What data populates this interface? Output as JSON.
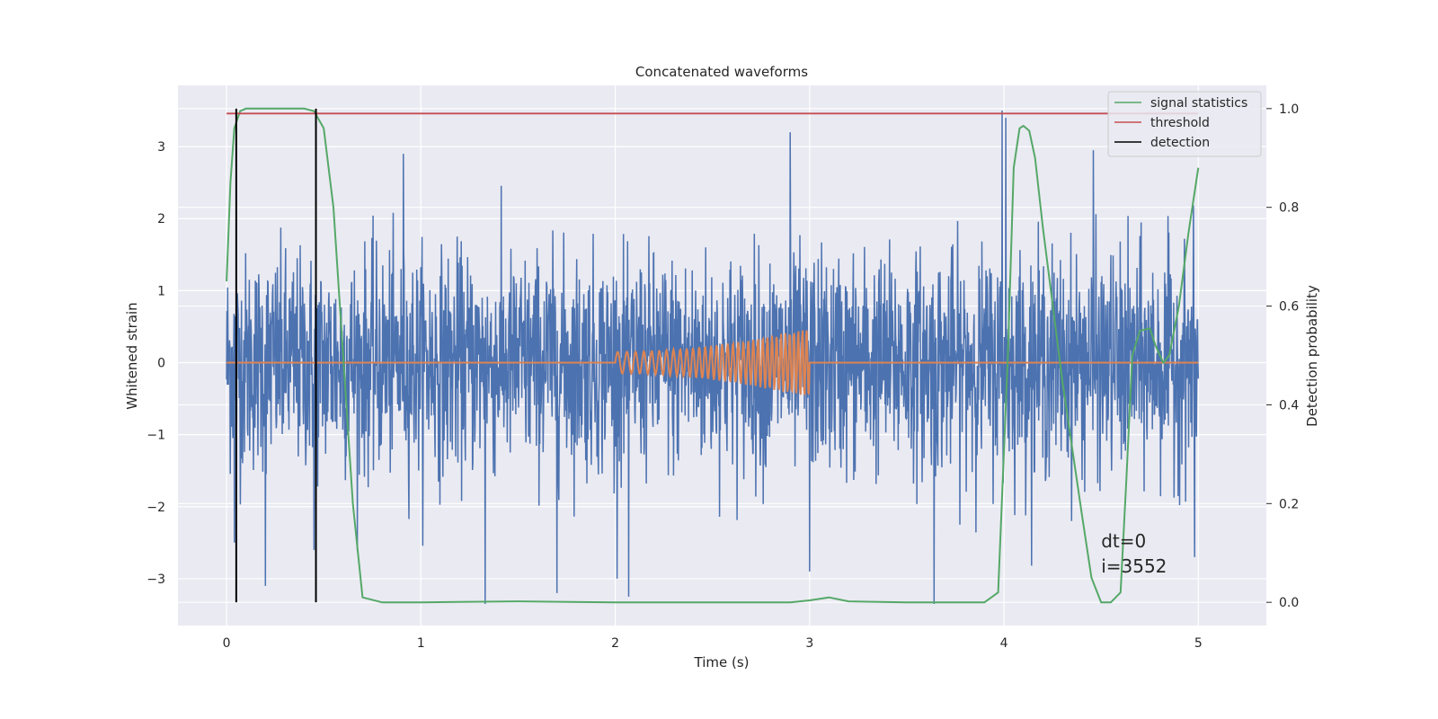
{
  "chart_data": {
    "type": "line",
    "title": "Concatenated waveforms",
    "xlabel": "Time (s)",
    "ylabel_left": "Whitened strain",
    "ylabel_right": "Detection probability",
    "xlim": [
      -0.25,
      5.35
    ],
    "ylim_left": [
      -3.65,
      3.85
    ],
    "ylim_right": [
      -0.047,
      1.047
    ],
    "x_ticks": [
      0,
      1,
      2,
      3,
      4,
      5
    ],
    "x_tick_labels": [
      "0",
      "1",
      "2",
      "3",
      "4",
      "5"
    ],
    "y_left_ticks": [
      -3,
      -2,
      -1,
      0,
      1,
      2,
      3
    ],
    "y_left_tick_labels": [
      "−3",
      "−2",
      "−1",
      "0",
      "1",
      "2",
      "3"
    ],
    "y_right_ticks": [
      0.0,
      0.2,
      0.4,
      0.6,
      0.8,
      1.0
    ],
    "y_right_tick_labels": [
      "0.0",
      "0.2",
      "0.4",
      "0.6",
      "0.8",
      "1.0"
    ],
    "grid": true,
    "legend_position": "top-right",
    "background": "#eaeaf2",
    "series": [
      {
        "name": "",
        "axis": "left",
        "color": "#4c72b0",
        "description_type": "noise",
        "x_range": [
          0,
          5
        ],
        "std": 0.75,
        "extremes": [
          {
            "x": 0.04,
            "y": -2.5
          },
          {
            "x": 0.2,
            "y": -3.1
          },
          {
            "x": 0.45,
            "y": -2.6
          },
          {
            "x": 0.91,
            "y": 2.9
          },
          {
            "x": 1.33,
            "y": -3.35
          },
          {
            "x": 1.7,
            "y": -3.2
          },
          {
            "x": 2.07,
            "y": -3.25
          },
          {
            "x": 2.9,
            "y": 3.2
          },
          {
            "x": 3.0,
            "y": -2.9
          },
          {
            "x": 3.64,
            "y": -3.35
          },
          {
            "x": 3.99,
            "y": 3.5
          },
          {
            "x": 4.01,
            "y": 3.4
          },
          {
            "x": 4.46,
            "y": 2.95
          },
          {
            "x": 4.98,
            "y": -2.7
          }
        ]
      },
      {
        "name": "",
        "axis": "left",
        "color": "#dd8452",
        "description_type": "chirp",
        "x_range": [
          0,
          5
        ],
        "chirp_start": 2.0,
        "chirp_end": 3.0,
        "amplitude_start": 0.15,
        "amplitude_end": 0.5,
        "freq_start": 20,
        "freq_end": 48
      },
      {
        "name": "signal statistics",
        "axis": "right",
        "color": "#55a868",
        "x": [
          0.0,
          0.02,
          0.04,
          0.07,
          0.1,
          0.2,
          0.3,
          0.4,
          0.45,
          0.5,
          0.55,
          0.6,
          0.65,
          0.7,
          0.8,
          1.0,
          1.5,
          2.0,
          2.5,
          2.9,
          3.0,
          3.1,
          3.2,
          3.5,
          3.9,
          3.97,
          4.02,
          4.05,
          4.08,
          4.1,
          4.13,
          4.16,
          4.2,
          4.3,
          4.4,
          4.45,
          4.5,
          4.55,
          4.6,
          4.63,
          4.66,
          4.7,
          4.75,
          4.78,
          4.82,
          4.85,
          4.9,
          4.95,
          5.0
        ],
        "y": [
          0.65,
          0.85,
          0.96,
          0.995,
          1.0,
          1.0,
          1.0,
          1.0,
          0.995,
          0.96,
          0.8,
          0.5,
          0.2,
          0.01,
          0.0,
          0.0,
          0.002,
          0.0,
          0.0,
          0.0,
          0.004,
          0.01,
          0.002,
          0.0,
          0.0,
          0.02,
          0.5,
          0.88,
          0.96,
          0.965,
          0.955,
          0.9,
          0.76,
          0.45,
          0.18,
          0.05,
          0.0,
          0.0,
          0.02,
          0.25,
          0.5,
          0.55,
          0.555,
          0.52,
          0.485,
          0.5,
          0.6,
          0.75,
          0.88
        ]
      },
      {
        "name": "threshold",
        "axis": "right",
        "color": "#c44e52",
        "x": [
          0.0,
          5.0
        ],
        "y": [
          0.99,
          0.99
        ]
      },
      {
        "name": "detection",
        "axis": "right",
        "color": "#000000",
        "vlines": [
          0.05,
          0.46
        ],
        "y_range": [
          0.0,
          1.0
        ]
      }
    ],
    "annotations": {
      "line1": "dt=0",
      "line2": "i=3552",
      "x": 4.5,
      "y_right": 0.1
    }
  }
}
